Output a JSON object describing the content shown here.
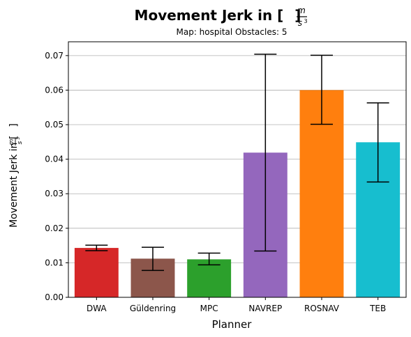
{
  "chart_data": {
    "type": "bar",
    "title": "Movement Jerk in [m/s³]",
    "title_parts": {
      "prefix": "Movement Jerk in [",
      "num": "m",
      "den": "s",
      "sup": "3",
      "suffix": "]"
    },
    "subtitle": "Map: hospital Obstacles: 5",
    "xlabel": "Planner",
    "ylabel": "Movement Jerk in [m/s³]",
    "ylabel_parts": {
      "prefix": "Movement Jerk in [",
      "num": "m",
      "den": "s",
      "sup": "3",
      "suffix": "]"
    },
    "categories": [
      "DWA",
      "Güldenring",
      "MPC",
      "NAVREP",
      "ROSNAV",
      "TEB"
    ],
    "values": [
      0.0143,
      0.0112,
      0.011,
      0.0419,
      0.06,
      0.0449
    ],
    "error_low": [
      0.0135,
      0.0078,
      0.0094,
      0.0134,
      0.0501,
      0.0334
    ],
    "error_high": [
      0.0151,
      0.0145,
      0.0128,
      0.0704,
      0.0701,
      0.0563
    ],
    "colors": [
      "#d62728",
      "#8c564b",
      "#2ca02c",
      "#9467bd",
      "#ff7f0e",
      "#17becf"
    ],
    "ylim": [
      0,
      0.074
    ],
    "yticks": [
      0.0,
      0.01,
      0.02,
      0.03,
      0.04,
      0.05,
      0.06,
      0.07
    ],
    "ytick_labels": [
      "0.00",
      "0.01",
      "0.02",
      "0.03",
      "0.04",
      "0.05",
      "0.06",
      "0.07"
    ],
    "grid": "y-axis horizontal lines"
  }
}
